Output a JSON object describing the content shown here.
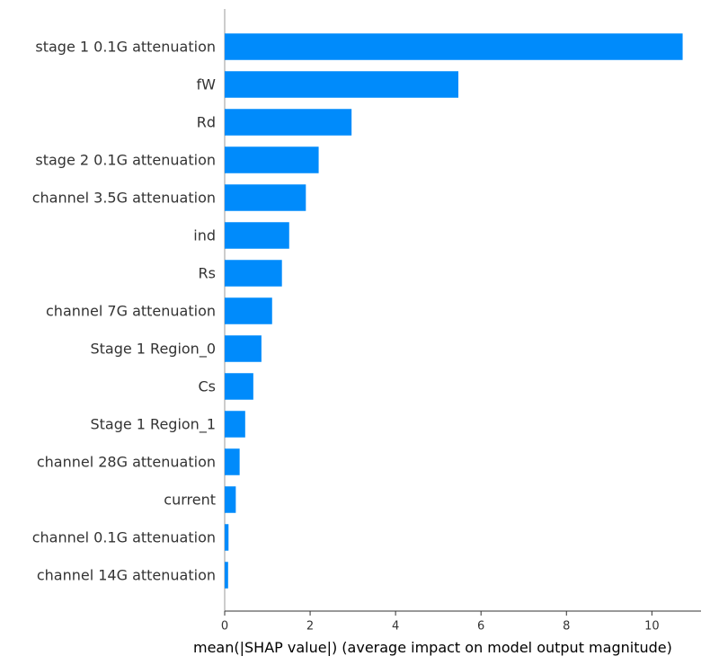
{
  "chart_data": {
    "type": "bar",
    "orientation": "horizontal",
    "categories": [
      "stage 1 0.1G attenuation",
      "fW",
      "Rd",
      "stage 2 0.1G attenuation",
      "channel 3.5G attenuation",
      "ind",
      "Rs",
      "channel 7G attenuation",
      "Stage 1 Region_0",
      "Cs",
      "Stage 1 Region_1",
      "channel 28G attenuation",
      "current",
      "channel 0.1G attenuation",
      "channel 14G attenuation"
    ],
    "values": [
      10.72,
      5.47,
      2.97,
      2.2,
      1.9,
      1.51,
      1.34,
      1.11,
      0.86,
      0.67,
      0.48,
      0.35,
      0.26,
      0.09,
      0.08
    ],
    "xlabel": "mean(|SHAP value|) (average impact on model output magnitude)",
    "ylabel": "",
    "title": "",
    "xlim": [
      0,
      11.15
    ],
    "xticks": [
      0,
      2,
      4,
      6,
      8,
      10
    ],
    "grid": false,
    "legend": "none",
    "bar_color": "#008bfb",
    "axis_color": "#333333",
    "spine_color": "#999999"
  }
}
